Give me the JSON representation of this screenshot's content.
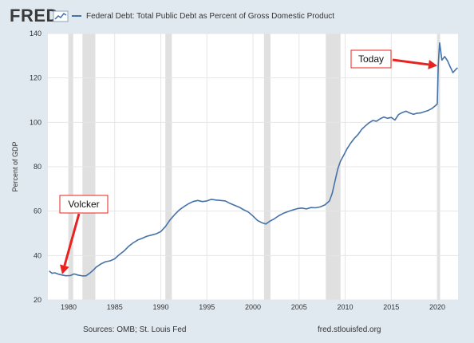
{
  "header": {
    "logo_text": "FRED",
    "logo_mark_icon": "fred-chart-icon"
  },
  "legend": {
    "label": "Federal Debt: Total Public Debt as Percent of Gross Domestic Product"
  },
  "footer": {
    "sources": "Sources: OMB; St. Louis Fed",
    "url": "fred.stlouisfed.org"
  },
  "colors": {
    "line": "#4572a7",
    "background": "#e1e9f0",
    "plot": "#ffffff",
    "recession": "#e0e0e0",
    "annotation": "#e8231f"
  },
  "annotations": {
    "volcker": "Volcker",
    "today": "Today"
  },
  "chart_data": {
    "type": "line",
    "title": "",
    "series_name": "Federal Debt: Total Public Debt as Percent of Gross Domestic Product",
    "xlabel": "",
    "ylabel": "Percent of GDP",
    "xlim": [
      1977.75,
      2022.25
    ],
    "ylim": [
      20,
      140
    ],
    "x_ticks": [
      1980,
      1985,
      1990,
      1995,
      2000,
      2005,
      2010,
      2015,
      2020
    ],
    "y_ticks": [
      20,
      40,
      60,
      80,
      100,
      120,
      140
    ],
    "grid": true,
    "recessions": [
      [
        1980.0,
        1980.5
      ],
      [
        1981.5,
        1982.9
      ],
      [
        1990.5,
        1991.2
      ],
      [
        2001.2,
        2001.9
      ],
      [
        2007.9,
        2009.5
      ],
      [
        2020.0,
        2020.3
      ]
    ],
    "points": [
      [
        1977.9,
        33.0
      ],
      [
        1978.2,
        32.0
      ],
      [
        1978.5,
        32.2
      ],
      [
        1978.9,
        31.6
      ],
      [
        1979.3,
        31.2
      ],
      [
        1979.7,
        30.9
      ],
      [
        1980.2,
        31.0
      ],
      [
        1980.6,
        31.7
      ],
      [
        1981.0,
        31.2
      ],
      [
        1981.5,
        30.8
      ],
      [
        1981.9,
        30.9
      ],
      [
        1982.3,
        32.1
      ],
      [
        1982.7,
        33.5
      ],
      [
        1983.0,
        34.8
      ],
      [
        1983.5,
        36.2
      ],
      [
        1984.0,
        37.2
      ],
      [
        1984.5,
        37.6
      ],
      [
        1985.0,
        38.5
      ],
      [
        1985.5,
        40.4
      ],
      [
        1986.0,
        42.0
      ],
      [
        1986.5,
        44.1
      ],
      [
        1987.0,
        45.7
      ],
      [
        1987.5,
        47.0
      ],
      [
        1988.0,
        47.8
      ],
      [
        1988.5,
        48.7
      ],
      [
        1989.0,
        49.2
      ],
      [
        1989.5,
        49.8
      ],
      [
        1990.0,
        50.8
      ],
      [
        1990.5,
        53.0
      ],
      [
        1991.0,
        56.0
      ],
      [
        1991.5,
        58.4
      ],
      [
        1992.0,
        60.5
      ],
      [
        1992.5,
        62.0
      ],
      [
        1993.0,
        63.3
      ],
      [
        1993.5,
        64.3
      ],
      [
        1994.0,
        64.8
      ],
      [
        1994.5,
        64.3
      ],
      [
        1995.0,
        64.6
      ],
      [
        1995.5,
        65.3
      ],
      [
        1996.0,
        65.0
      ],
      [
        1996.5,
        64.8
      ],
      [
        1997.0,
        64.6
      ],
      [
        1997.5,
        63.5
      ],
      [
        1998.0,
        62.6
      ],
      [
        1998.5,
        61.8
      ],
      [
        1999.0,
        60.6
      ],
      [
        1999.5,
        59.6
      ],
      [
        2000.0,
        57.8
      ],
      [
        2000.5,
        55.8
      ],
      [
        2001.0,
        54.7
      ],
      [
        2001.4,
        54.2
      ],
      [
        2001.8,
        55.4
      ],
      [
        2002.3,
        56.5
      ],
      [
        2002.8,
        57.9
      ],
      [
        2003.3,
        59.0
      ],
      [
        2003.8,
        59.8
      ],
      [
        2004.3,
        60.5
      ],
      [
        2004.8,
        61.1
      ],
      [
        2005.3,
        61.4
      ],
      [
        2005.8,
        61.0
      ],
      [
        2006.3,
        61.6
      ],
      [
        2006.8,
        61.5
      ],
      [
        2007.3,
        61.9
      ],
      [
        2007.8,
        62.8
      ],
      [
        2008.3,
        64.6
      ],
      [
        2008.6,
        68.0
      ],
      [
        2008.9,
        73.5
      ],
      [
        2009.2,
        79.0
      ],
      [
        2009.5,
        82.5
      ],
      [
        2009.8,
        84.8
      ],
      [
        2010.2,
        88.0
      ],
      [
        2010.6,
        90.6
      ],
      [
        2011.0,
        92.8
      ],
      [
        2011.4,
        94.5
      ],
      [
        2011.8,
        96.8
      ],
      [
        2012.2,
        98.4
      ],
      [
        2012.6,
        99.8
      ],
      [
        2013.0,
        100.8
      ],
      [
        2013.4,
        100.5
      ],
      [
        2013.8,
        101.6
      ],
      [
        2014.2,
        102.4
      ],
      [
        2014.6,
        101.8
      ],
      [
        2015.0,
        102.2
      ],
      [
        2015.4,
        101.0
      ],
      [
        2015.8,
        103.5
      ],
      [
        2016.2,
        104.4
      ],
      [
        2016.6,
        105.0
      ],
      [
        2017.0,
        104.2
      ],
      [
        2017.4,
        103.6
      ],
      [
        2017.8,
        104.1
      ],
      [
        2018.2,
        104.2
      ],
      [
        2018.6,
        104.8
      ],
      [
        2019.0,
        105.3
      ],
      [
        2019.4,
        106.2
      ],
      [
        2019.8,
        107.5
      ],
      [
        2020.0,
        108.3
      ],
      [
        2020.1,
        126.0
      ],
      [
        2020.25,
        135.8
      ],
      [
        2020.5,
        128.0
      ],
      [
        2020.8,
        129.6
      ],
      [
        2021.1,
        127.8
      ],
      [
        2021.4,
        125.0
      ],
      [
        2021.7,
        122.4
      ],
      [
        2022.0,
        123.8
      ],
      [
        2022.2,
        124.6
      ]
    ]
  }
}
